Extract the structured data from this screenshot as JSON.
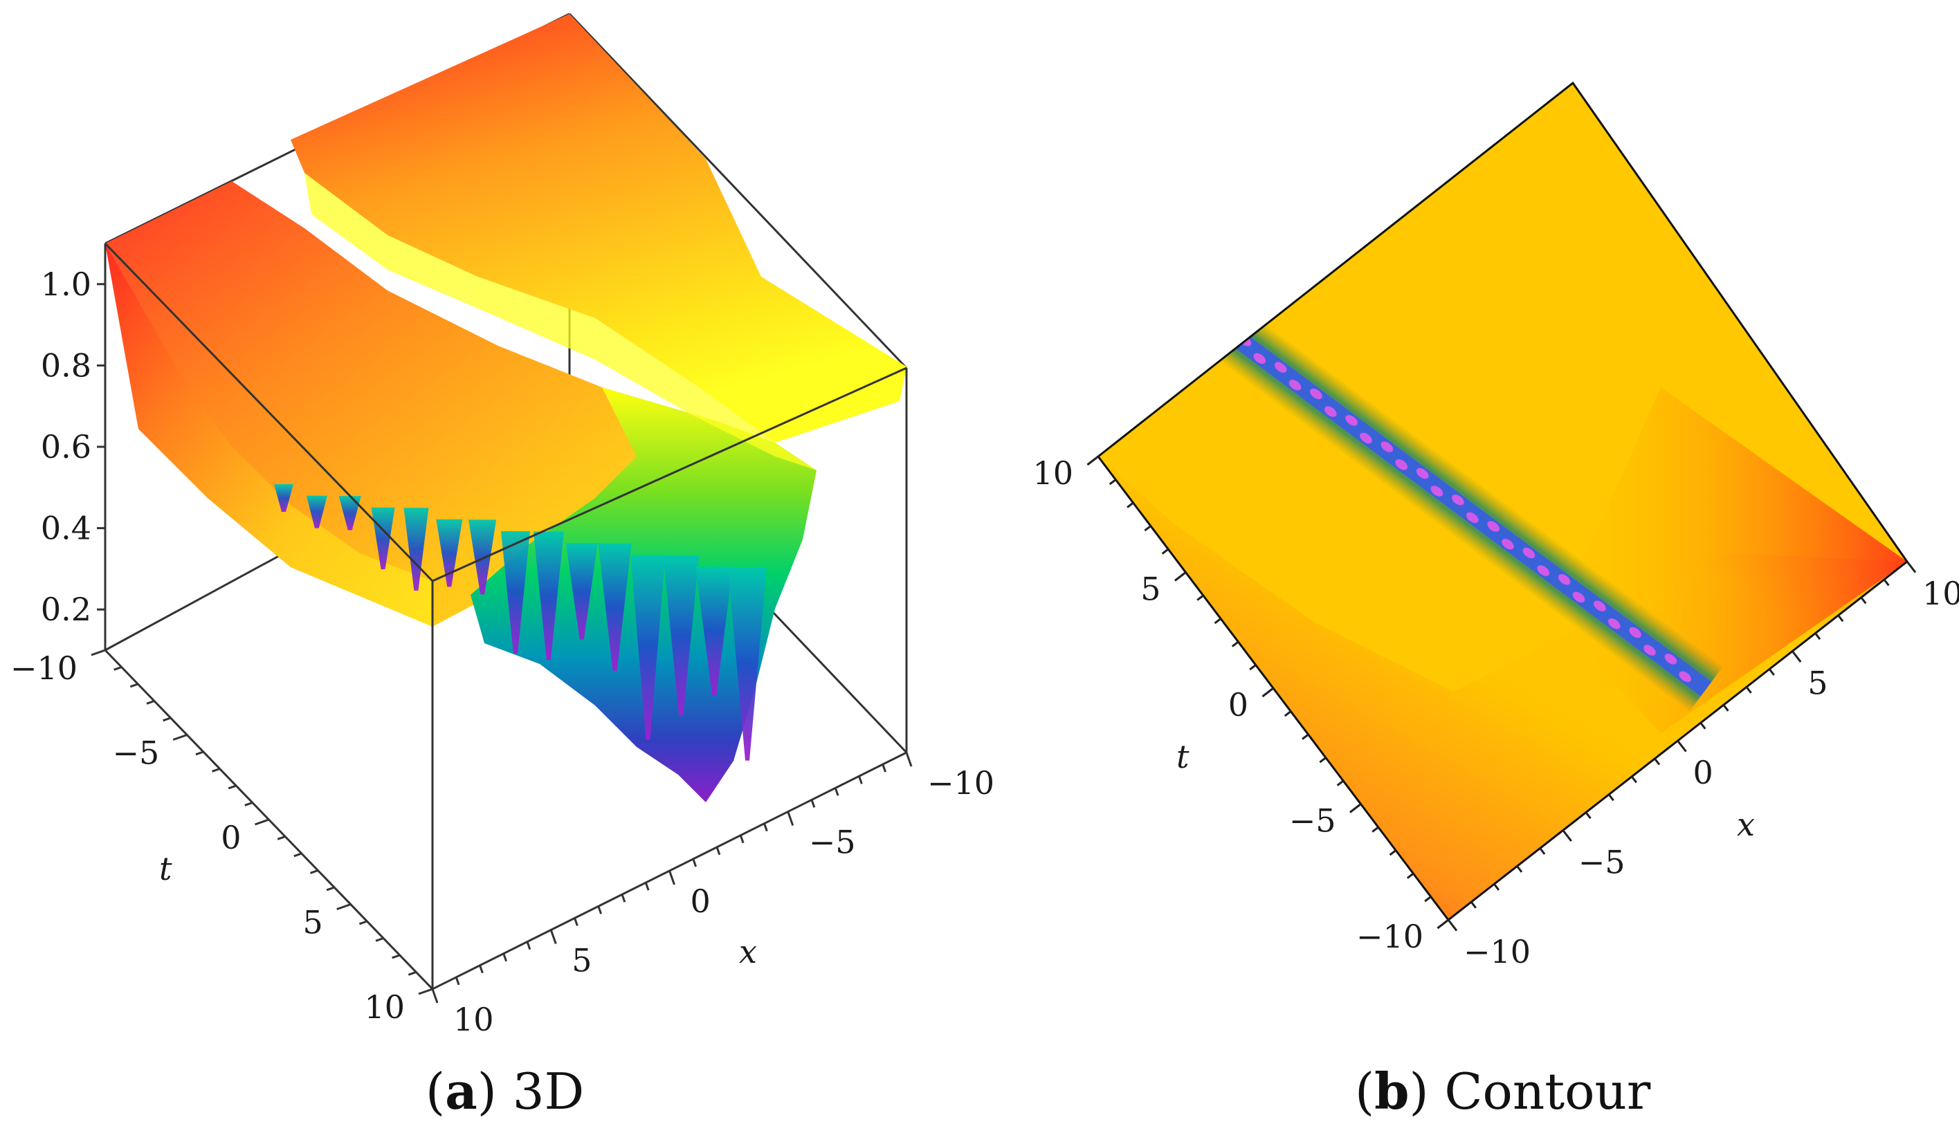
{
  "figure": {
    "panels": [
      {
        "letter": "a",
        "caption": "3D"
      },
      {
        "letter": "b",
        "caption": "Contour"
      }
    ]
  },
  "chart_data": [
    {
      "type": "surface3d",
      "title": "",
      "xlabel": "x",
      "ylabel": "t",
      "zlabel": "",
      "xlim": [
        -10,
        10
      ],
      "ylim": [
        -10,
        10
      ],
      "zlim": [
        0.1,
        1.1
      ],
      "x_ticks": [
        "-10",
        "-5",
        "0",
        "5",
        "10"
      ],
      "y_ticks": [
        "-10",
        "-5",
        "0",
        "5",
        "10"
      ],
      "z_ticks": [
        "0.2",
        "0.4",
        "0.6",
        "0.8",
        "1.0"
      ],
      "surface": {
        "background_level": 1.0,
        "trough_min": 0.1,
        "description_of_feature": "oscillating dark soliton trough along a line in x-t plane",
        "colormap": [
          "#ff1f1f",
          "#ffa000",
          "#ffe000",
          "#ffff00",
          "#00e000",
          "#00a0c0",
          "#3a40c0",
          "#9020c0"
        ]
      }
    },
    {
      "type": "heatmap",
      "title": "",
      "xlabel": "x",
      "ylabel": "t",
      "xlim": [
        -10,
        10
      ],
      "ylim": [
        -10,
        10
      ],
      "x_ticks": [
        "-10",
        "-5",
        "0",
        "5",
        "10"
      ],
      "y_ticks": [
        "-10",
        "-5",
        "0",
        "5",
        "10"
      ],
      "colormap": [
        "#ff2020",
        "#ff8c1a",
        "#ffc700",
        "#ffd400",
        "#2aa060",
        "#3a70d0",
        "#b040e0"
      ]
    }
  ]
}
